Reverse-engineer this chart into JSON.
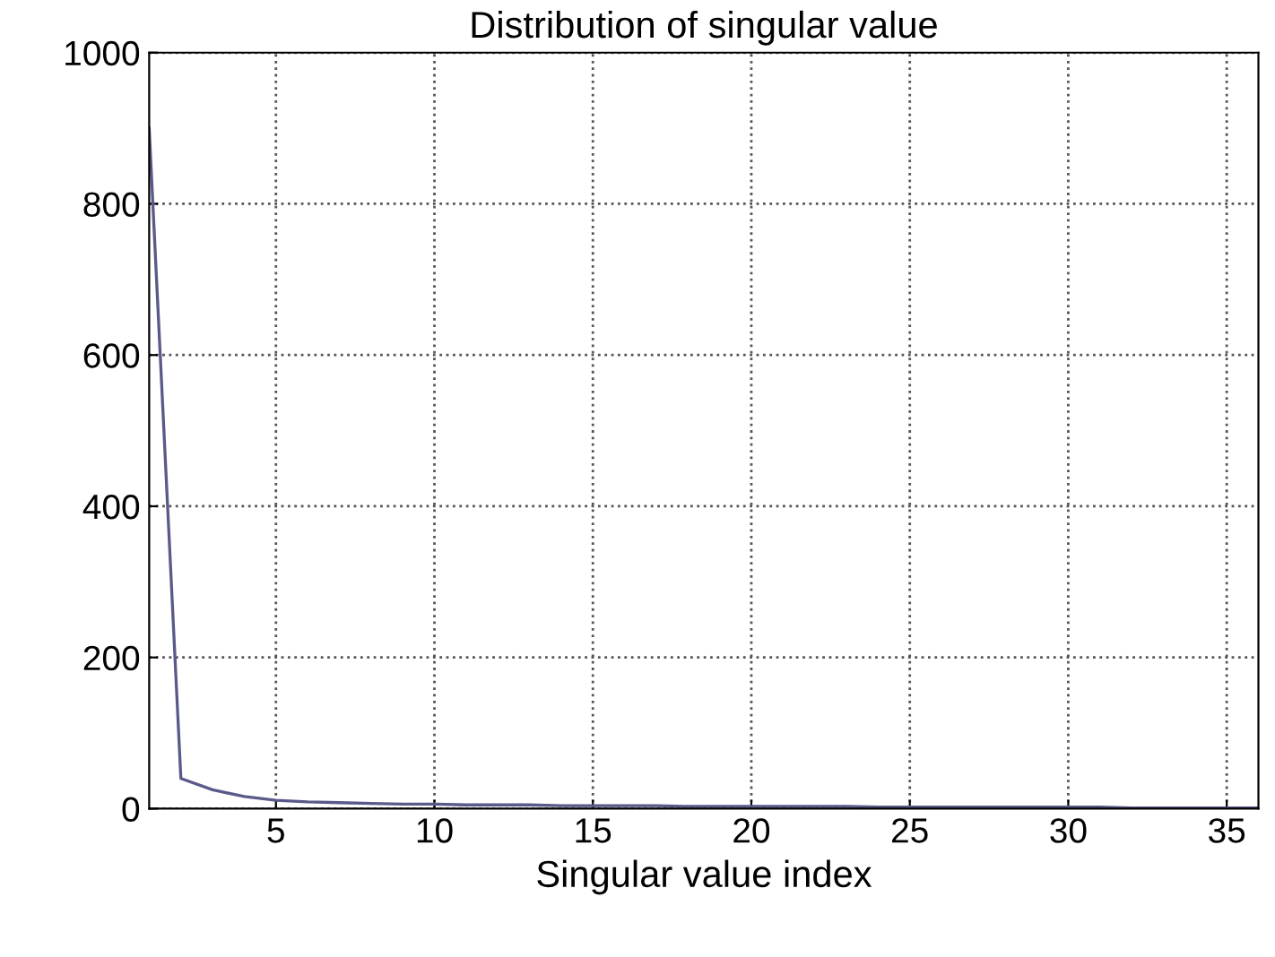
{
  "chart_data": {
    "type": "line",
    "title": "Distribution of singular value",
    "xlabel": "Singular value index",
    "x": [
      1,
      2,
      3,
      4,
      5,
      6,
      7,
      8,
      9,
      10,
      11,
      12,
      13,
      14,
      15,
      16,
      17,
      18,
      19,
      20,
      21,
      22,
      23,
      24,
      25,
      26,
      27,
      28,
      29,
      30,
      31,
      32,
      33,
      34,
      35,
      36
    ],
    "series": [
      {
        "color": "#5a5a8a",
        "values": [
          900,
          40,
          25,
          16,
          11,
          9,
          8,
          7,
          6,
          6,
          5,
          5,
          5,
          4,
          4,
          4,
          4,
          3,
          3,
          3,
          3,
          3,
          3,
          2,
          2,
          2,
          2,
          2,
          2,
          2,
          2,
          1,
          1,
          1,
          1,
          1
        ]
      }
    ],
    "xlim": [
      1,
      36
    ],
    "ylim": [
      0,
      1000
    ],
    "xticks": [
      5,
      10,
      15,
      20,
      25,
      30,
      35
    ],
    "yticks": [
      0,
      200,
      400,
      600,
      800,
      1000
    ],
    "grid": true,
    "line_style": "solid",
    "marker": "none"
  }
}
